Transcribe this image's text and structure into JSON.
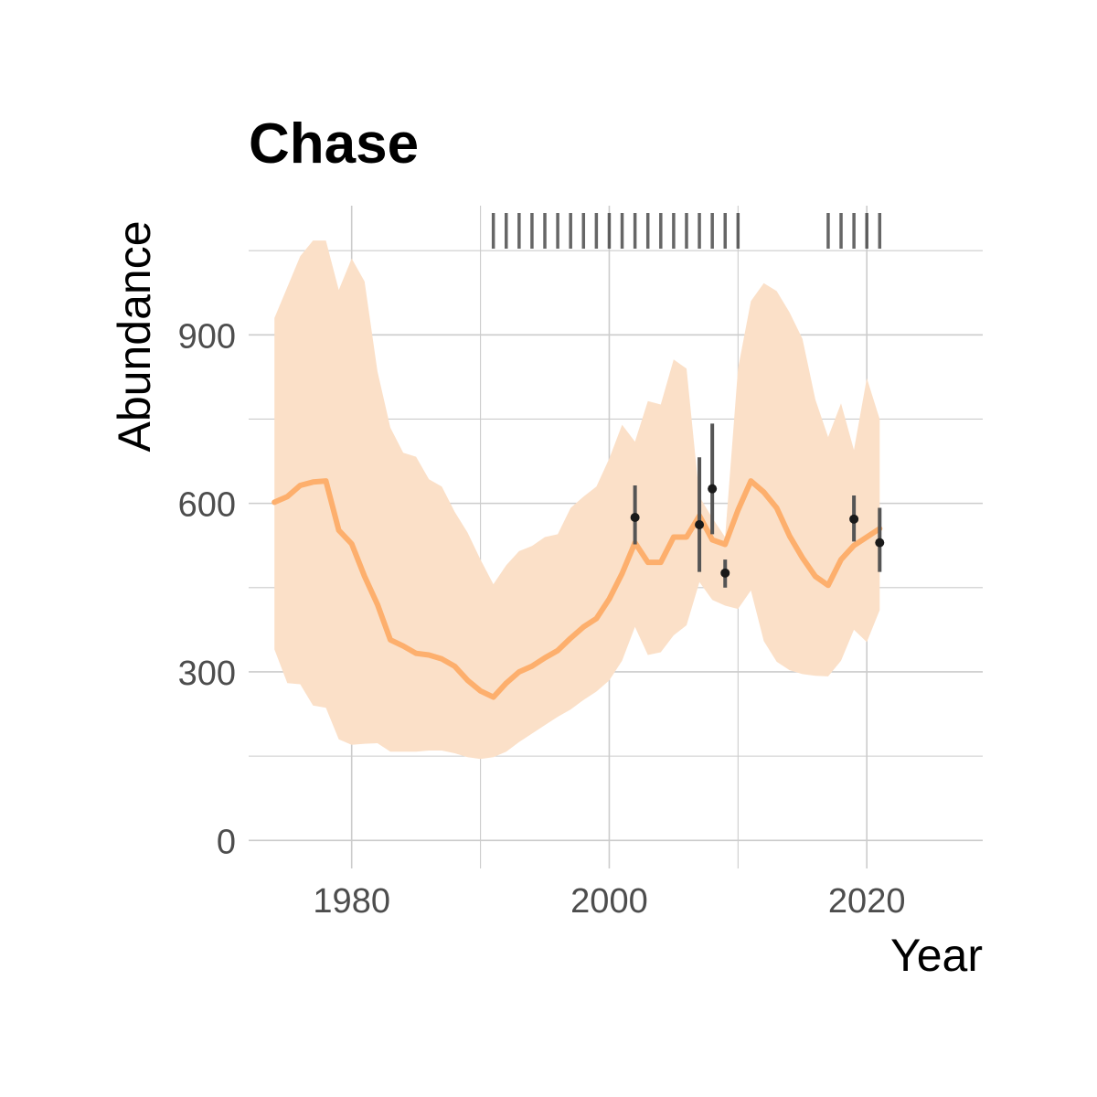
{
  "chart_data": {
    "type": "line",
    "title": "Chase",
    "xlabel": "Year",
    "ylabel": "Abundance",
    "xlim": [
      1972,
      2029
    ],
    "ylim": [
      -50,
      1130
    ],
    "x_ticks": [
      1980,
      2000,
      2020
    ],
    "x_tick_labels": [
      "1980",
      "2000",
      "2020"
    ],
    "y_ticks": [
      0,
      300,
      600,
      900
    ],
    "y_tick_labels": [
      "0",
      "300",
      "600",
      "900"
    ],
    "grid": true,
    "legend": "none",
    "colors": {
      "line": "#FDAF6D",
      "band": "#FBE0C8",
      "points": "#1a1a1a",
      "errorbars": "#555555",
      "rug": "#333333",
      "grid": "#cccccc"
    },
    "series": [
      {
        "kind": "estimate",
        "x": [
          1974,
          1975,
          1976,
          1977,
          1978,
          1979,
          1980,
          1981,
          1982,
          1983,
          1984,
          1985,
          1986,
          1987,
          1988,
          1989,
          1990,
          1991,
          1992,
          1993,
          1994,
          1995,
          1996,
          1997,
          1998,
          1999,
          2000,
          2001,
          2002,
          2003,
          2004,
          2005,
          2006,
          2007,
          2008,
          2009,
          2010,
          2011,
          2012,
          2013,
          2014,
          2015,
          2016,
          2017,
          2018,
          2019,
          2020,
          2021
        ],
        "y": [
          602,
          612,
          632,
          638,
          640,
          552,
          528,
          470,
          420,
          357,
          346,
          333,
          330,
          323,
          310,
          285,
          266,
          255,
          280,
          300,
          310,
          325,
          338,
          360,
          380,
          395,
          430,
          475,
          530,
          495,
          495,
          540,
          540,
          578,
          535,
          527,
          588,
          640,
          620,
          592,
          542,
          503,
          470,
          454,
          500,
          525,
          540,
          555
        ],
        "lower": [
          340,
          280,
          278,
          240,
          236,
          180,
          170,
          172,
          173,
          158,
          158,
          158,
          160,
          160,
          155,
          148,
          145,
          148,
          158,
          175,
          190,
          205,
          220,
          233,
          250,
          265,
          285,
          320,
          380,
          330,
          335,
          365,
          383,
          460,
          428,
          418,
          412,
          445,
          355,
          318,
          303,
          296,
          293,
          292,
          320,
          375,
          353,
          410
        ],
        "upper": [
          930,
          985,
          1040,
          1068,
          1068,
          980,
          1036,
          995,
          835,
          735,
          690,
          683,
          643,
          630,
          585,
          548,
          500,
          456,
          490,
          515,
          524,
          540,
          545,
          592,
          612,
          630,
          680,
          740,
          710,
          782,
          776,
          856,
          840,
          612,
          574,
          540,
          840,
          960,
          992,
          978,
          940,
          893,
          785,
          718,
          778,
          695,
          823,
          750
        ]
      },
      {
        "kind": "observations",
        "x": [
          2002,
          2007,
          2008,
          2009,
          2019,
          2021
        ],
        "y": [
          575,
          562,
          626,
          476,
          572,
          530
        ],
        "lower": [
          527,
          478,
          545,
          450,
          532,
          478
        ],
        "upper": [
          632,
          682,
          742,
          500,
          614,
          592
        ]
      }
    ],
    "rug_x": [
      1991,
      1992,
      1993,
      1994,
      1995,
      1996,
      1997,
      1998,
      1999,
      2000,
      2001,
      2002,
      2003,
      2004,
      2005,
      2006,
      2007,
      2008,
      2009,
      2010,
      2017,
      2018,
      2019,
      2020,
      2021
    ]
  }
}
